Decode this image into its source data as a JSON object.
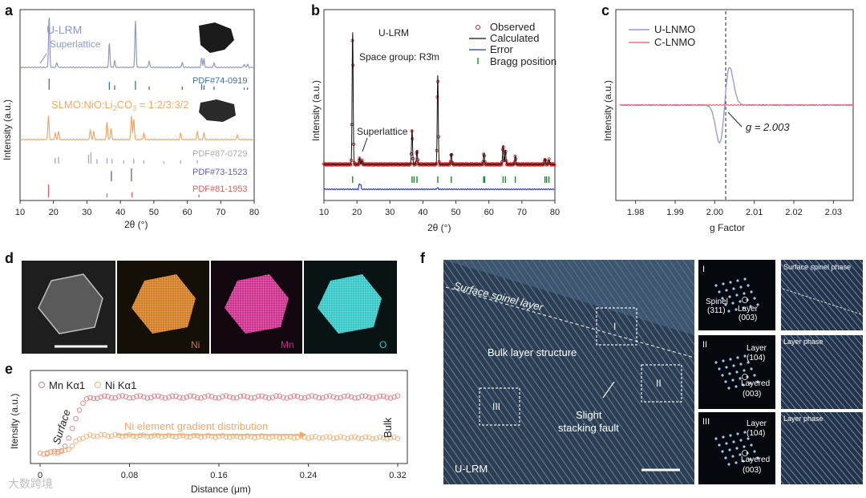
{
  "panels": {
    "a": {
      "label": "a",
      "ylabel": "Intensity (a.u.)",
      "xlabel": "2θ (°)",
      "xticks": [
        "10",
        "20",
        "30",
        "40",
        "50",
        "60",
        "70",
        "80"
      ],
      "trace1_label": "U-LRM",
      "superlattice": "Superlattice",
      "pdf1": "PDF#74-0919",
      "trace2_label_pre": "SLMO:NiO:Li",
      "trace2_label_sub": "2",
      "trace2_label_post": "CO",
      "trace2_label_sub2": "3",
      "trace2_label_end": " = 1:2/3:3/2",
      "pdf2": "PDF#87-0729",
      "pdf3": "PDF#73-1523",
      "pdf4": "PDF#81-1953",
      "colors": {
        "trace1": "#8e97cc",
        "trace2": "#f0a866",
        "pdf1": "#3b6fb5",
        "pdf2": "#aaaaaa",
        "pdf3": "#5b5fb0",
        "pdf4": "#e25b5b"
      }
    },
    "b": {
      "label": "b",
      "title": "U-LRM",
      "spacegroup": "Space group: R3̄m",
      "ylabel": "Intensity (a.u.)",
      "xlabel": "2θ (°)",
      "xticks": [
        "10",
        "20",
        "30",
        "40",
        "50",
        "60",
        "70",
        "80"
      ],
      "superlattice": "Superlattice",
      "legend": [
        "Observed",
        "Calculated",
        "Error",
        "Bragg position"
      ],
      "colors": {
        "observed": "#cc2222",
        "calculated": "#111111",
        "error": "#2233cc",
        "bragg": "#1a8a2a"
      }
    },
    "c": {
      "label": "c",
      "ylabel": "Intensity (a.u.)",
      "xlabel": "g Factor",
      "xticks": [
        "1.98",
        "1.99",
        "2.00",
        "2.01",
        "2.02",
        "2.03"
      ],
      "legend": [
        "U-LNMO",
        "C-LNMO"
      ],
      "annotation": "g = 2.003",
      "colors": {
        "u": "#8f98d0",
        "c": "#e8707a"
      }
    },
    "d": {
      "label": "d",
      "tiles": [
        "Ni",
        "Mn",
        "O"
      ],
      "colors": {
        "ni": "#d27a1c",
        "mn": "#cc2a8a",
        "o": "#2fc6c4"
      }
    },
    "e": {
      "label": "e",
      "ylabel": "Itensity (a.u.)",
      "xlabel": "Distance (μm)",
      "xticks": [
        "0",
        "0.08",
        "0.16",
        "0.24",
        "0.32"
      ],
      "legend": [
        "Mn Kα1",
        "Ni Kα1"
      ],
      "surface": "Surface",
      "bulk": "Bulk",
      "gradient": "Ni element gradient distribution",
      "colors": {
        "mn": "#e07a85",
        "ni": "#f0b070"
      }
    },
    "f": {
      "label": "f",
      "surface_layer": "Surface spinel layer",
      "bulk_structure": "Bulk layer structure",
      "fault": [
        "Slight",
        "stacking fault"
      ],
      "regions": [
        "I",
        "II",
        "III"
      ],
      "sample": "U-LRM",
      "fft": [
        {
          "roman": "I",
          "labels": [
            "Spinel",
            "(311)",
            "Layer",
            "(003)"
          ]
        },
        {
          "roman": "II",
          "labels": [
            "Layer",
            "(104)",
            "Layered",
            "(003)"
          ]
        },
        {
          "roman": "III",
          "labels": [
            "Layer",
            "(104)",
            "Layered",
            "(003)"
          ]
        }
      ],
      "phases": [
        "Surface spinel phase",
        "Layer phase",
        "Layer phase"
      ]
    }
  },
  "watermark": "大数跨境"
}
